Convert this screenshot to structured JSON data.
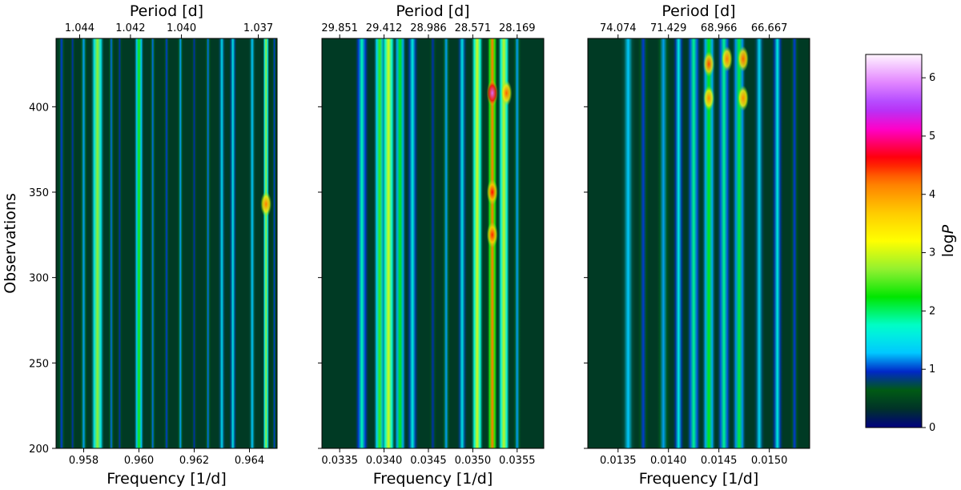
{
  "chart_data": [
    {
      "type": "heatmap",
      "panel": 1,
      "xlabel": "Frequency [1/d]",
      "ylabel": "Observations",
      "top_label": "Period [d]",
      "xlim": [
        0.957,
        0.965
      ],
      "ylim": [
        200,
        440
      ],
      "x_ticks": [
        0.958,
        0.96,
        0.962,
        0.964
      ],
      "x_tick_labels": [
        "0.958",
        "0.960",
        "0.962",
        "0.964"
      ],
      "y_ticks": [
        200,
        250,
        300,
        350,
        400
      ],
      "y_tick_labels": [
        "200",
        "250",
        "300",
        "350",
        "400"
      ],
      "top_ticks": [
        1.044,
        1.042,
        1.04,
        1.037
      ],
      "top_tick_labels": [
        "1.044",
        "1.042",
        "1.040",
        "1.037"
      ],
      "bands": [
        {
          "x": 0.9572,
          "w": 0.00015,
          "v": 1.0
        },
        {
          "x": 0.9576,
          "w": 0.00012,
          "v": 0.9
        },
        {
          "x": 0.958,
          "w": 0.00015,
          "v": 1.2
        },
        {
          "x": 0.9585,
          "w": 0.00025,
          "v": 2.7
        },
        {
          "x": 0.959,
          "w": 0.00012,
          "v": 1.1
        },
        {
          "x": 0.9593,
          "w": 0.00012,
          "v": 0.9
        },
        {
          "x": 0.96,
          "w": 0.00018,
          "v": 2.3
        },
        {
          "x": 0.9605,
          "w": 0.00012,
          "v": 1.1
        },
        {
          "x": 0.961,
          "w": 0.00012,
          "v": 1.0
        },
        {
          "x": 0.9615,
          "w": 0.00012,
          "v": 1.2
        },
        {
          "x": 0.962,
          "w": 0.00012,
          "v": 0.9
        },
        {
          "x": 0.9625,
          "w": 0.00012,
          "v": 1.1
        },
        {
          "x": 0.963,
          "w": 0.00015,
          "v": 1.4
        },
        {
          "x": 0.9634,
          "w": 0.00015,
          "v": 1.5
        },
        {
          "x": 0.9641,
          "w": 0.00015,
          "v": 1.3
        },
        {
          "x": 0.9646,
          "w": 0.00012,
          "v": 2.7
        },
        {
          "x": 0.9649,
          "w": 0.0001,
          "v": 1.0
        }
      ],
      "hotspots": [
        {
          "x": 0.9646,
          "y": 343,
          "v": 4.2
        }
      ]
    },
    {
      "type": "heatmap",
      "panel": 2,
      "xlabel": "Frequency [1/d]",
      "top_label": "Period [d]",
      "xlim": [
        0.0333,
        0.0358
      ],
      "ylim": [
        200,
        440
      ],
      "x_ticks": [
        0.0335,
        0.034,
        0.0345,
        0.035,
        0.0355
      ],
      "x_tick_labels": [
        "0.0335",
        "0.0340",
        "0.0345",
        "0.0350",
        "0.0355"
      ],
      "top_ticks": [
        0.0335,
        0.034,
        0.0345,
        0.035,
        0.0355
      ],
      "top_tick_labels": [
        "29.851",
        "29.412",
        "28.986",
        "28.571",
        "28.169"
      ],
      "bands": [
        {
          "x": 0.03375,
          "w": 8e-05,
          "v": 1.8
        },
        {
          "x": 0.03395,
          "w": 7e-05,
          "v": 2.4
        },
        {
          "x": 0.03405,
          "w": 8e-05,
          "v": 3.0
        },
        {
          "x": 0.03418,
          "w": 7e-05,
          "v": 2.2
        },
        {
          "x": 0.03432,
          "w": 7e-05,
          "v": 1.6
        },
        {
          "x": 0.03455,
          "w": 5e-05,
          "v": 0.9
        },
        {
          "x": 0.0347,
          "w": 5e-05,
          "v": 1.2
        },
        {
          "x": 0.03488,
          "w": 6e-05,
          "v": 1.5
        },
        {
          "x": 0.03505,
          "w": 7e-05,
          "v": 3.0
        },
        {
          "x": 0.03522,
          "w": 6e-05,
          "v": 4.2
        },
        {
          "x": 0.03535,
          "w": 7e-05,
          "v": 2.9
        },
        {
          "x": 0.0355,
          "w": 5e-05,
          "v": 1.2
        }
      ],
      "hotspots": [
        {
          "x": 0.03522,
          "y": 408,
          "v": 5.8
        },
        {
          "x": 0.03522,
          "y": 350,
          "v": 4.6
        },
        {
          "x": 0.03522,
          "y": 325,
          "v": 4.5
        },
        {
          "x": 0.03538,
          "y": 408,
          "v": 4.3
        }
      ]
    },
    {
      "type": "heatmap",
      "panel": 3,
      "xlabel": "Frequency [1/d]",
      "top_label": "Period [d]",
      "xlim": [
        0.0132,
        0.0154
      ],
      "ylim": [
        200,
        440
      ],
      "x_ticks": [
        0.0135,
        0.014,
        0.0145,
        0.015
      ],
      "x_tick_labels": [
        "0.0135",
        "0.0140",
        "0.0145",
        "0.0150"
      ],
      "top_ticks": [
        0.0135,
        0.014,
        0.0145,
        0.015
      ],
      "top_tick_labels": [
        "74.074",
        "71.429",
        "68.966",
        "66.667"
      ],
      "bands": [
        {
          "x": 0.0136,
          "w": 8e-05,
          "v": 1.3
        },
        {
          "x": 0.01375,
          "w": 6e-05,
          "v": 1.0
        },
        {
          "x": 0.01395,
          "w": 7e-05,
          "v": 1.2
        },
        {
          "x": 0.0141,
          "w": 6e-05,
          "v": 1.6
        },
        {
          "x": 0.01425,
          "w": 7e-05,
          "v": 1.9
        },
        {
          "x": 0.0144,
          "w": 7e-05,
          "v": 2.2
        },
        {
          "x": 0.01455,
          "w": 7e-05,
          "v": 1.9
        },
        {
          "x": 0.0147,
          "w": 7e-05,
          "v": 2.1
        },
        {
          "x": 0.0149,
          "w": 6e-05,
          "v": 1.4
        },
        {
          "x": 0.01508,
          "w": 6e-05,
          "v": 1.6
        },
        {
          "x": 0.01525,
          "w": 5e-05,
          "v": 1.0
        }
      ],
      "hotspots": [
        {
          "x": 0.0144,
          "y": 425,
          "v": 4.4
        },
        {
          "x": 0.01458,
          "y": 428,
          "v": 4.2
        },
        {
          "x": 0.01474,
          "y": 428,
          "v": 4.3
        },
        {
          "x": 0.0144,
          "y": 405,
          "v": 4.1
        },
        {
          "x": 0.01474,
          "y": 405,
          "v": 4.1
        }
      ]
    }
  ],
  "colorbar": {
    "label_text": "log",
    "label_var": "P",
    "vmin": 0,
    "vmax": 6.4,
    "ticks": [
      0,
      1,
      2,
      3,
      4,
      5,
      6
    ],
    "tick_labels": [
      "0",
      "1",
      "2",
      "3",
      "4",
      "5",
      "6"
    ],
    "colormap": "gist_ncar"
  }
}
